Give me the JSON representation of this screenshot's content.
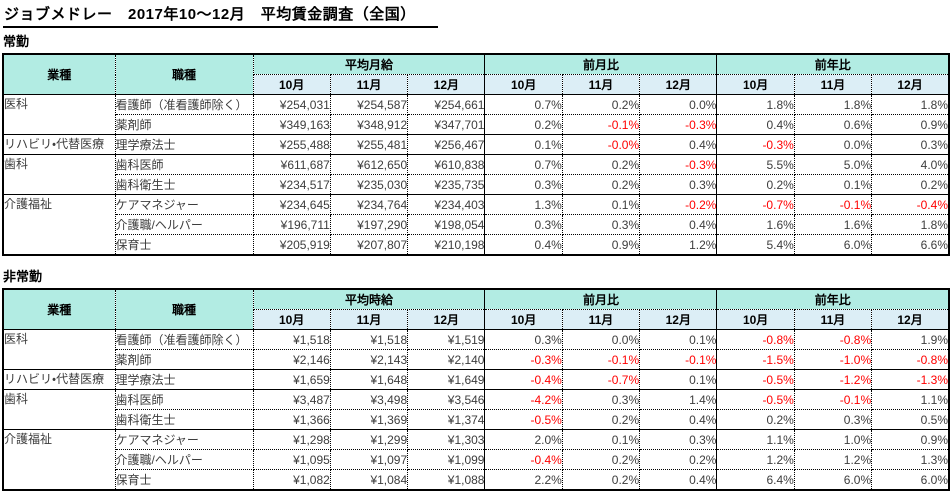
{
  "title": "ジョブメドレー　2017年10～12月　平均賃金調査（全国）",
  "colors": {
    "header_teal": "#b2ece3",
    "subheader_blue": "#dceef6",
    "negative": "#ff0000"
  },
  "months": [
    "10月",
    "11月",
    "12月"
  ],
  "tables": [
    {
      "section": "常勤",
      "industry_header": "業種",
      "occupation_header": "職種",
      "groups": [
        "平均月給",
        "前月比",
        "前年比"
      ],
      "rows": [
        {
          "industry": "医科",
          "span": 2,
          "occupation": "看護師（准看護師除く）",
          "values": [
            "¥254,031",
            "¥254,587",
            "¥254,661"
          ],
          "mom": [
            "0.7%",
            "0.2%",
            "0.0%"
          ],
          "yoy": [
            "1.8%",
            "1.8%",
            "1.8%"
          ]
        },
        {
          "occupation": "薬剤師",
          "values": [
            "¥349,163",
            "¥348,912",
            "¥347,701"
          ],
          "mom": [
            "0.2%",
            "-0.1%",
            "-0.3%"
          ],
          "yoy": [
            "0.4%",
            "0.6%",
            "0.9%"
          ]
        },
        {
          "industry": "リハビリ・代替医療",
          "span": 1,
          "occupation": "理学療法士",
          "values": [
            "¥255,488",
            "¥255,481",
            "¥256,467"
          ],
          "mom": [
            "0.1%",
            "-0.0%",
            "0.4%"
          ],
          "yoy": [
            "-0.3%",
            "0.0%",
            "0.3%"
          ]
        },
        {
          "industry": "歯科",
          "span": 2,
          "occupation": "歯科医師",
          "values": [
            "¥611,687",
            "¥612,650",
            "¥610,838"
          ],
          "mom": [
            "0.7%",
            "0.2%",
            "-0.3%"
          ],
          "yoy": [
            "5.5%",
            "5.0%",
            "4.0%"
          ]
        },
        {
          "occupation": "歯科衛生士",
          "values": [
            "¥234,517",
            "¥235,030",
            "¥235,735"
          ],
          "mom": [
            "0.3%",
            "0.2%",
            "0.3%"
          ],
          "yoy": [
            "0.2%",
            "0.1%",
            "0.2%"
          ]
        },
        {
          "industry": "介護福祉",
          "span": 3,
          "occupation": "ケアマネジャー",
          "values": [
            "¥234,645",
            "¥234,764",
            "¥234,403"
          ],
          "mom": [
            "1.3%",
            "0.1%",
            "-0.2%"
          ],
          "yoy": [
            "-0.7%",
            "-0.1%",
            "-0.4%"
          ]
        },
        {
          "occupation": "介護職/ヘルパー",
          "values": [
            "¥196,711",
            "¥197,290",
            "¥198,054"
          ],
          "mom": [
            "0.3%",
            "0.3%",
            "0.4%"
          ],
          "yoy": [
            "1.6%",
            "1.6%",
            "1.8%"
          ]
        },
        {
          "occupation": "保育士",
          "values": [
            "¥205,919",
            "¥207,807",
            "¥210,198"
          ],
          "mom": [
            "0.4%",
            "0.9%",
            "1.2%"
          ],
          "yoy": [
            "5.4%",
            "6.0%",
            "6.6%"
          ]
        }
      ]
    },
    {
      "section": "非常勤",
      "industry_header": "業種",
      "occupation_header": "職種",
      "groups": [
        "平均時給",
        "前月比",
        "前年比"
      ],
      "rows": [
        {
          "industry": "医科",
          "span": 2,
          "occupation": "看護師（准看護師除く）",
          "values": [
            "¥1,518",
            "¥1,518",
            "¥1,519"
          ],
          "mom": [
            "0.3%",
            "0.0%",
            "0.1%"
          ],
          "yoy": [
            "-0.8%",
            "-0.8%",
            "1.9%"
          ]
        },
        {
          "occupation": "薬剤師",
          "values": [
            "¥2,146",
            "¥2,143",
            "¥2,140"
          ],
          "mom": [
            "-0.3%",
            "-0.1%",
            "-0.1%"
          ],
          "yoy": [
            "-1.5%",
            "-1.0%",
            "-0.8%"
          ]
        },
        {
          "industry": "リハビリ・代替医療",
          "span": 1,
          "occupation": "理学療法士",
          "values": [
            "¥1,659",
            "¥1,648",
            "¥1,649"
          ],
          "mom": [
            "-0.4%",
            "-0.7%",
            "0.1%"
          ],
          "yoy": [
            "-0.5%",
            "-1.2%",
            "-1.3%"
          ]
        },
        {
          "industry": "歯科",
          "span": 2,
          "occupation": "歯科医師",
          "values": [
            "¥3,487",
            "¥3,498",
            "¥3,546"
          ],
          "mom": [
            "-4.2%",
            "0.3%",
            "1.4%"
          ],
          "yoy": [
            "-0.5%",
            "-0.1%",
            "1.1%"
          ]
        },
        {
          "occupation": "歯科衛生士",
          "values": [
            "¥1,366",
            "¥1,369",
            "¥1,374"
          ],
          "mom": [
            "-0.5%",
            "0.2%",
            "0.4%"
          ],
          "yoy": [
            "0.2%",
            "0.3%",
            "0.5%"
          ]
        },
        {
          "industry": "介護福祉",
          "span": 3,
          "occupation": "ケアマネジャー",
          "values": [
            "¥1,298",
            "¥1,299",
            "¥1,303"
          ],
          "mom": [
            "2.0%",
            "0.1%",
            "0.3%"
          ],
          "yoy": [
            "1.1%",
            "1.0%",
            "0.9%"
          ]
        },
        {
          "occupation": "介護職/ヘルパー",
          "values": [
            "¥1,095",
            "¥1,097",
            "¥1,099"
          ],
          "mom": [
            "-0.4%",
            "0.2%",
            "0.2%"
          ],
          "yoy": [
            "1.2%",
            "1.2%",
            "1.3%"
          ]
        },
        {
          "occupation": "保育士",
          "values": [
            "¥1,082",
            "¥1,084",
            "¥1,088"
          ],
          "mom": [
            "2.2%",
            "0.2%",
            "0.4%"
          ],
          "yoy": [
            "6.4%",
            "6.0%",
            "6.0%"
          ]
        }
      ]
    }
  ]
}
